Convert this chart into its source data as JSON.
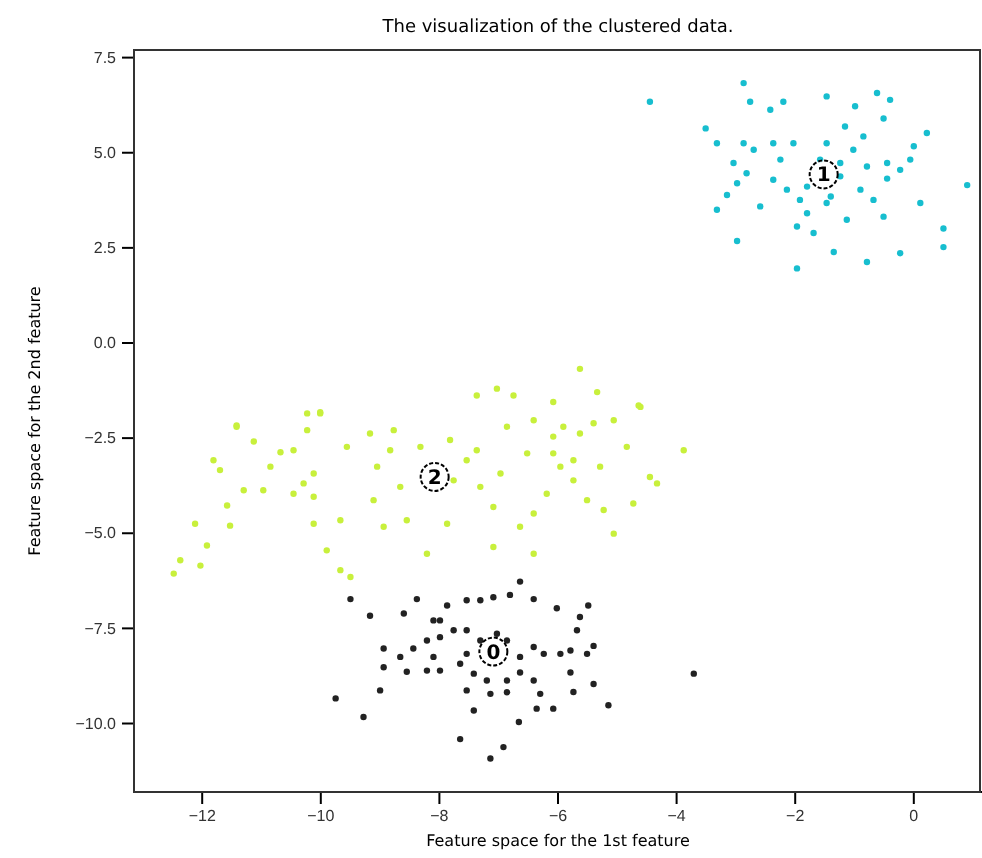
{
  "chart_data": {
    "type": "scatter",
    "title": "The visualization of the clustered data.",
    "xlabel": "Feature space for the 1st feature",
    "ylabel": "Feature space for the 2nd feature",
    "xlim": [
      -13.15,
      1.15
    ],
    "ylim": [
      -11.8,
      7.7
    ],
    "xticks": [
      {
        "value": -12,
        "label": "−12"
      },
      {
        "value": -10,
        "label": "−10"
      },
      {
        "value": -8,
        "label": "−8"
      },
      {
        "value": -6,
        "label": "−6"
      },
      {
        "value": -4,
        "label": "−4"
      },
      {
        "value": -2,
        "label": "−2"
      },
      0
    ],
    "yticks": [
      {
        "value": -10,
        "label": "−10.0"
      },
      {
        "value": -7.5,
        "label": "−7.5"
      },
      {
        "value": -5,
        "label": "−5.0"
      },
      {
        "value": -2.5,
        "label": "−2.5"
      },
      {
        "value": 0,
        "label": "0.0"
      },
      2.5,
      {
        "value": 5,
        "label": "5.0"
      },
      7.5
    ],
    "grid": false,
    "marker": "circle",
    "series": [
      {
        "color": "#222222",
        "x": [
          -9.5,
          -9.17,
          -8.6,
          -8.38,
          -8.1,
          -7.87,
          -7.54,
          -7.31,
          -7.09,
          -6.81,
          -6.64,
          -6.41,
          -6.02,
          -5.63,
          -5.49,
          -5.68,
          -5.4,
          -5.51,
          -5.79,
          -5.96,
          -6.24,
          -6.41,
          -6.86,
          -7.03,
          -7.31,
          -7.54,
          -7.76,
          -7.99,
          -8.21,
          -8.44,
          -8.66,
          -8.94,
          -8.94,
          -8.55,
          -8.21,
          -7.99,
          -7.65,
          -7.42,
          -7.54,
          -7.2,
          -6.86,
          -6.64,
          -6.41,
          -6.3,
          -5.79,
          -5.74,
          -5.4,
          -5.15,
          -6.08,
          -6.36,
          -6.66,
          -6.92,
          -7.14,
          -7.65,
          -7.42,
          -7.14,
          -6.86,
          -9.0,
          -9.28,
          -9.75,
          -3.71,
          -7.99,
          -7.54,
          -6.64,
          -8.1
        ],
        "values": [
          -6.73,
          -7.17,
          -7.11,
          -6.73,
          -7.29,
          -6.9,
          -6.76,
          -6.76,
          -6.68,
          -6.62,
          -6.27,
          -6.73,
          -6.97,
          -7.2,
          -6.9,
          -7.55,
          -7.96,
          -8.17,
          -8.08,
          -8.17,
          -8.17,
          -7.99,
          -7.82,
          -7.64,
          -7.82,
          -7.55,
          -7.55,
          -7.73,
          -7.82,
          -8.03,
          -8.25,
          -8.03,
          -8.52,
          -8.64,
          -8.61,
          -8.61,
          -8.43,
          -8.69,
          -9.13,
          -8.87,
          -8.87,
          -8.66,
          -8.87,
          -9.22,
          -8.66,
          -9.17,
          -8.96,
          -9.52,
          -9.61,
          -9.61,
          -9.96,
          -10.62,
          -10.92,
          -10.41,
          -9.66,
          -9.22,
          -9.18,
          -9.13,
          -9.83,
          -9.34,
          -8.69,
          -7.29,
          -8.17,
          -8.25,
          -8.25
        ]
      },
      {
        "color": "#17becf",
        "x": [
          -4.45,
          -2.87,
          -2.76,
          -3.51,
          -3.32,
          -2.87,
          -2.42,
          -2.2,
          -1.47,
          -0.99,
          -0.62,
          -0.4,
          -0.51,
          -0.85,
          -1.16,
          0.22,
          0.0,
          -0.06,
          -0.23,
          -0.45,
          -0.79,
          -1.02,
          -1.47,
          -2.03,
          -2.37,
          -2.7,
          -3.04,
          -2.82,
          -2.37,
          -2.14,
          -1.92,
          -1.8,
          -1.97,
          -1.69,
          -1.35,
          -1.97,
          -0.79,
          -0.23,
          0.5,
          0.5,
          0.11,
          -0.51,
          -1.13,
          -1.47,
          -0.9,
          -0.68,
          0.9,
          -2.98,
          -3.32,
          -3.15,
          -2.59,
          -2.25,
          -1.24,
          -1.58,
          -1.24,
          -1.8,
          -1.4,
          -2.98,
          -0.45
        ],
        "values": [
          6.34,
          6.83,
          6.34,
          5.64,
          5.25,
          5.25,
          6.13,
          6.34,
          6.48,
          6.22,
          6.57,
          6.39,
          5.9,
          5.43,
          5.69,
          5.52,
          5.17,
          4.82,
          4.55,
          4.73,
          4.64,
          5.08,
          5.25,
          5.25,
          5.25,
          5.08,
          4.73,
          4.46,
          4.29,
          4.03,
          3.76,
          3.41,
          3.06,
          2.89,
          2.39,
          1.96,
          2.13,
          2.36,
          3.01,
          2.52,
          3.68,
          3.32,
          3.24,
          3.68,
          4.03,
          3.76,
          4.15,
          2.68,
          3.5,
          3.89,
          3.59,
          4.82,
          4.38,
          4.82,
          4.73,
          4.11,
          3.85,
          4.2,
          4.32
        ]
      },
      {
        "color": "#c8f03c",
        "x": [
          -12.48,
          -12.37,
          -12.03,
          -12.12,
          -11.92,
          -11.53,
          -11.58,
          -11.7,
          -11.81,
          -11.42,
          -11.13,
          -11.3,
          -10.97,
          -10.85,
          -10.68,
          -10.46,
          -10.23,
          -10.01,
          -10.23,
          -10.29,
          -10.12,
          -10.12,
          -9.9,
          -9.67,
          -9.5,
          -9.67,
          -9.56,
          -9.17,
          -8.77,
          -8.83,
          -9.05,
          -9.11,
          -8.94,
          -8.55,
          -8.32,
          -8.21,
          -7.87,
          -7.82,
          -7.54,
          -7.37,
          -7.31,
          -7.09,
          -7.09,
          -6.86,
          -6.41,
          -6.08,
          -5.91,
          -5.63,
          -5.4,
          -5.06,
          -4.61,
          -4.84,
          -4.45,
          -4.33,
          -4.73,
          -5.06,
          -5.23,
          -5.51,
          -5.74,
          -5.96,
          -6.19,
          -6.41,
          -6.41,
          -6.64,
          -6.97,
          -6.52,
          -6.08,
          -5.74,
          -3.88,
          -5.29,
          -10.12,
          -10.46,
          -8.66,
          -7.76,
          -5.63,
          -7.03,
          -7.37,
          -6.75,
          -5.34,
          -6.08,
          -4.64,
          -10.01,
          -11.42
        ],
        "values": [
          -6.06,
          -5.71,
          -5.85,
          -4.75,
          -5.32,
          -4.8,
          -4.27,
          -3.34,
          -3.08,
          -2.2,
          -2.59,
          -3.87,
          -3.87,
          -3.25,
          -2.87,
          -2.82,
          -2.29,
          -1.85,
          -1.85,
          -3.69,
          -4.04,
          -4.75,
          -5.45,
          -5.97,
          -6.15,
          -4.66,
          -2.73,
          -2.38,
          -2.29,
          -2.82,
          -3.25,
          -4.13,
          -4.83,
          -4.66,
          -2.73,
          -5.54,
          -4.75,
          -2.55,
          -3.08,
          -2.82,
          -3.78,
          -4.31,
          -5.36,
          -2.2,
          -2.03,
          -2.46,
          -2.2,
          -2.38,
          -2.11,
          -2.03,
          -1.68,
          -2.73,
          -3.52,
          -3.69,
          -4.22,
          -5.01,
          -4.39,
          -4.13,
          -3.61,
          -3.25,
          -3.96,
          -4.48,
          -5.54,
          -4.83,
          -3.43,
          -2.9,
          -2.9,
          -3.08,
          -2.82,
          -3.25,
          -3.43,
          -3.96,
          -3.78,
          -3.61,
          -0.68,
          -1.2,
          -1.38,
          -1.38,
          -1.29,
          -1.55,
          -1.64,
          -1.82,
          -2.17
        ]
      }
    ],
    "annotations": [
      {
        "text": "1",
        "x": -1.52,
        "y": 4.43
      },
      {
        "text": "2",
        "x": -8.08,
        "y": -3.52
      },
      {
        "text": "0",
        "x": -7.09,
        "y": -8.11
      }
    ]
  }
}
